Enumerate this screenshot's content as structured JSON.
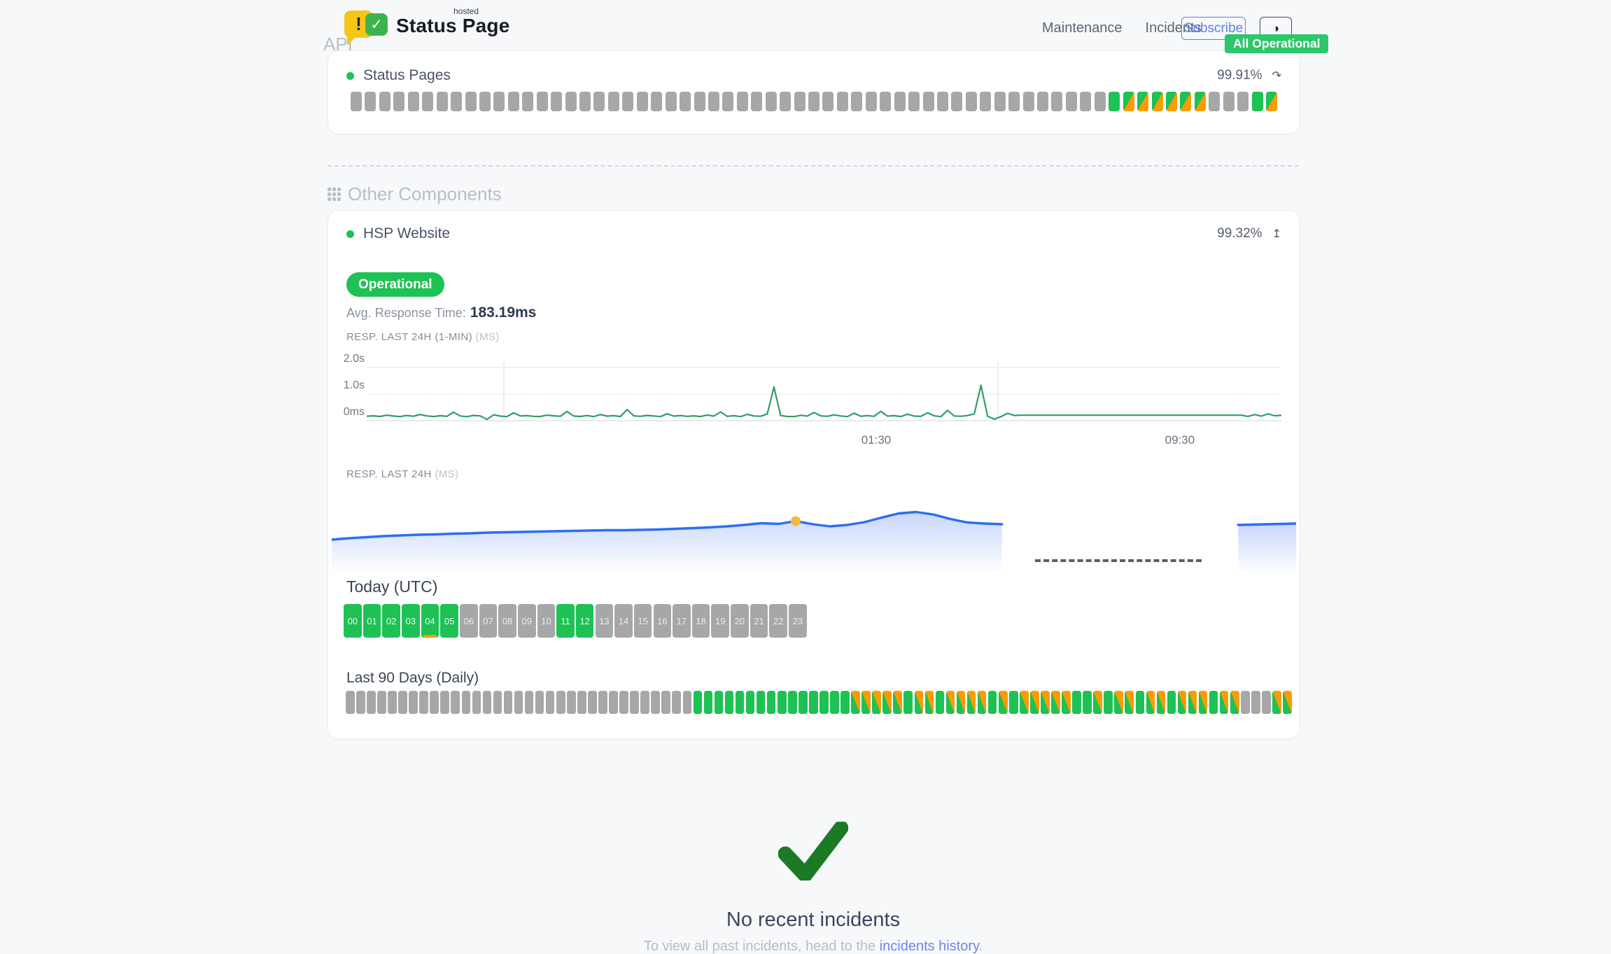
{
  "header": {
    "brand": {
      "name": "Status Page",
      "superscript": "hosted",
      "exclamation": "!",
      "check": "✓"
    },
    "nav": [
      {
        "label": "Maintenance"
      },
      {
        "label": "Incidents"
      }
    ],
    "subscribe_label": "Subscribe",
    "theme_toggle_icon": "◑",
    "status_badge": {
      "label": "All Operational",
      "color": "#2bc76a"
    }
  },
  "colors": {
    "up": "#1ec154",
    "degraded": "#fb9b00",
    "unknown": "#a6a7a9",
    "line_green": "#2f9e63",
    "line_blue": "#2b6ef2",
    "marker_yellow": "#f3b840",
    "check_green": "#1d7a24"
  },
  "sections": {
    "api": {
      "title": "API",
      "component": {
        "name": "Status Pages",
        "uptime": "99.91%",
        "refresh_icon": "↷",
        "bars": [
          "g",
          "g",
          "g",
          "g",
          "g",
          "g",
          "g",
          "g",
          "g",
          "g",
          "g",
          "g",
          "g",
          "g",
          "g",
          "g",
          "g",
          "g",
          "g",
          "g",
          "g",
          "g",
          "g",
          "g",
          "g",
          "g",
          "g",
          "g",
          "g",
          "g",
          "g",
          "g",
          "g",
          "g",
          "g",
          "g",
          "g",
          "g",
          "g",
          "g",
          "g",
          "g",
          "g",
          "g",
          "g",
          "g",
          "g",
          "g",
          "g",
          "g",
          "g",
          "g",
          "g",
          "u",
          "m",
          "m",
          "m",
          "m",
          "m",
          "m",
          "g",
          "g",
          "g",
          "u",
          "m"
        ]
      }
    },
    "other": {
      "title": "Other Components",
      "component": {
        "name": "HSP Website",
        "uptime": "99.32%",
        "upload_icon": "↥",
        "status_label": "Operational",
        "avg_response_label": "Avg. Response Time:",
        "avg_response_value": "183.19ms",
        "chart1_label": "RESP. LAST 24H (1-MIN)",
        "chart1_unit": "(MS)",
        "chart2_label": "RESP. LAST 24H",
        "chart2_unit": "(MS)",
        "today_title": "Today (UTC)",
        "hours": [
          {
            "label": "00",
            "state": "u"
          },
          {
            "label": "01",
            "state": "u"
          },
          {
            "label": "02",
            "state": "u"
          },
          {
            "label": "03",
            "state": "u"
          },
          {
            "label": "04",
            "state": "u",
            "marker": true
          },
          {
            "label": "05",
            "state": "u"
          },
          {
            "label": "06",
            "state": "g"
          },
          {
            "label": "07",
            "state": "g"
          },
          {
            "label": "08",
            "state": "g"
          },
          {
            "label": "09",
            "state": "g"
          },
          {
            "label": "10",
            "state": "g"
          },
          {
            "label": "11",
            "state": "u"
          },
          {
            "label": "12",
            "state": "u"
          },
          {
            "label": "13",
            "state": "g"
          },
          {
            "label": "14",
            "state": "g"
          },
          {
            "label": "15",
            "state": "g"
          },
          {
            "label": "16",
            "state": "g"
          },
          {
            "label": "17",
            "state": "g"
          },
          {
            "label": "18",
            "state": "g"
          },
          {
            "label": "19",
            "state": "g"
          },
          {
            "label": "20",
            "state": "g"
          },
          {
            "label": "21",
            "state": "g"
          },
          {
            "label": "22",
            "state": "g"
          },
          {
            "label": "23",
            "state": "g"
          }
        ],
        "last90_title": "Last 90 Days (Daily)",
        "last90_bars": [
          "g",
          "g",
          "g",
          "g",
          "g",
          "g",
          "g",
          "g",
          "g",
          "g",
          "g",
          "g",
          "g",
          "g",
          "g",
          "g",
          "g",
          "g",
          "g",
          "g",
          "g",
          "g",
          "g",
          "g",
          "g",
          "g",
          "g",
          "g",
          "g",
          "g",
          "g",
          "g",
          "g",
          "u",
          "u",
          "u",
          "u",
          "u",
          "u",
          "u",
          "u",
          "u",
          "u",
          "u",
          "u",
          "u",
          "u",
          "u",
          "m",
          "m",
          "m",
          "m",
          "m",
          "u",
          "m",
          "m",
          "u",
          "m",
          "m",
          "m",
          "m",
          "u",
          "m",
          "u",
          "m",
          "m",
          "m",
          "m",
          "m",
          "u",
          "u",
          "m",
          "u",
          "m",
          "m",
          "u",
          "m",
          "m",
          "u",
          "m",
          "m",
          "m",
          "u",
          "m",
          "m",
          "g",
          "g",
          "g",
          "m",
          "m"
        ]
      }
    }
  },
  "footer": {
    "title": "No recent incidents",
    "subtitle_prefix": "To view all past incidents, head to the ",
    "link_label": "incidents history",
    "subtitle_suffix": "."
  },
  "chart_data": [
    {
      "type": "line",
      "title": "RESP. LAST 24H (1-MIN)",
      "unit": "MS",
      "ylabels": [
        "2.0s",
        "1.0s",
        "0ms"
      ],
      "ylim_ms": [
        0,
        2000
      ],
      "xticks": [
        {
          "label": "01:30",
          "pos": 0.557
        },
        {
          "label": "09:30",
          "pos": 0.889
        }
      ],
      "vlines": [
        0.15,
        0.69
      ],
      "color": "#2f9e63",
      "values": [
        168,
        182,
        158,
        204,
        174,
        152,
        194,
        166,
        232,
        178,
        156,
        188,
        162,
        318,
        176,
        150,
        198,
        178,
        48,
        222,
        172,
        152,
        292,
        176,
        190,
        162,
        154,
        208,
        182,
        166,
        346,
        174,
        158,
        192,
        152,
        228,
        172,
        186,
        156,
        415,
        182,
        162,
        198,
        176,
        152,
        258,
        170,
        192,
        162,
        182,
        156,
        212,
        172,
        328,
        162,
        186,
        152,
        238,
        176,
        166,
        252,
        1265,
        192,
        158,
        152,
        202,
        172,
        308,
        182,
        162,
        218,
        176,
        152,
        278,
        166,
        190,
        162,
        348,
        172,
        186,
        156,
        242,
        170,
        162,
        298,
        182,
        152,
        388,
        176,
        166,
        192,
        255,
        1330,
        168,
        55,
        152,
        275,
        195,
        205,
        205,
        205,
        205,
        205,
        205,
        205,
        205,
        205,
        205,
        205,
        205,
        205,
        205,
        205,
        205,
        205,
        205,
        205,
        205,
        205,
        205,
        205,
        205,
        205,
        205,
        205,
        205,
        205,
        205,
        205,
        205,
        205,
        205,
        160,
        228,
        172,
        255,
        185,
        200
      ]
    },
    {
      "type": "area",
      "title": "RESP. LAST 24H",
      "unit": "MS",
      "color": "#2b6ef2",
      "marker_color": "#f3b840",
      "marker_index": 27,
      "segment1": [
        166,
        170,
        173,
        176,
        178,
        180,
        181,
        183,
        184,
        186,
        187,
        188,
        189,
        190,
        191,
        192,
        193,
        193,
        194,
        195,
        197,
        199,
        201,
        204,
        208,
        213,
        211,
        219,
        210,
        204,
        208,
        216,
        229,
        241,
        245,
        238,
        225,
        215,
        212,
        210
      ],
      "segment1_span": [
        0,
        0.695
      ],
      "gap_dashed": true,
      "segment2": [
        208,
        209,
        210,
        211,
        212
      ],
      "segment2_span": [
        0.94,
        1.0
      ]
    }
  ]
}
